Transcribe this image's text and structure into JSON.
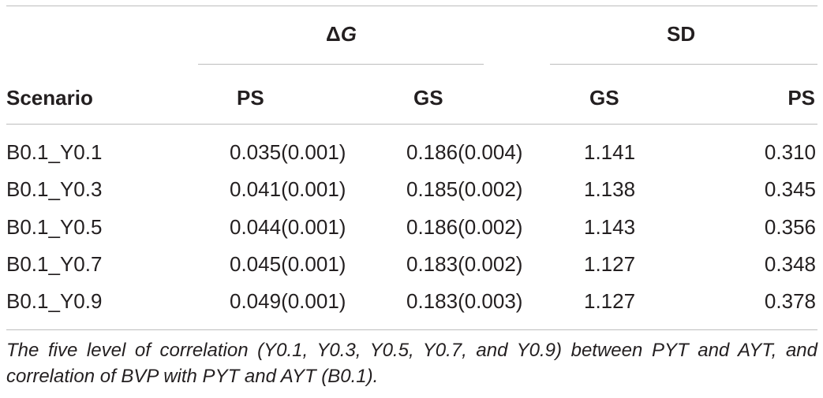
{
  "table": {
    "group_headers": {
      "delta_symbol": "Δ",
      "delta_var": "G",
      "sd": "SD"
    },
    "columns": [
      "Scenario",
      "PS",
      "GS",
      "GS",
      "PS"
    ],
    "rows": [
      [
        "B0.1_Y0.1",
        "0.035(0.001)",
        "0.186(0.004)",
        "1.141",
        "0.310"
      ],
      [
        "B0.1_Y0.3",
        "0.041(0.001)",
        "0.185(0.002)",
        "1.138",
        "0.345"
      ],
      [
        "B0.1_Y0.5",
        "0.044(0.001)",
        "0.186(0.002)",
        "1.143",
        "0.356"
      ],
      [
        "B0.1_Y0.7",
        "0.045(0.001)",
        "0.183(0.002)",
        "1.127",
        "0.348"
      ],
      [
        "B0.1_Y0.9",
        "0.049(0.001)",
        "0.183(0.003)",
        "1.127",
        "0.378"
      ]
    ],
    "caption": "The five level of correlation (Y0.1, Y0.3, Y0.5, Y0.7, and Y0.9) between PYT and AYT, and correlation of BVP with PYT and AYT (B0.1)."
  }
}
